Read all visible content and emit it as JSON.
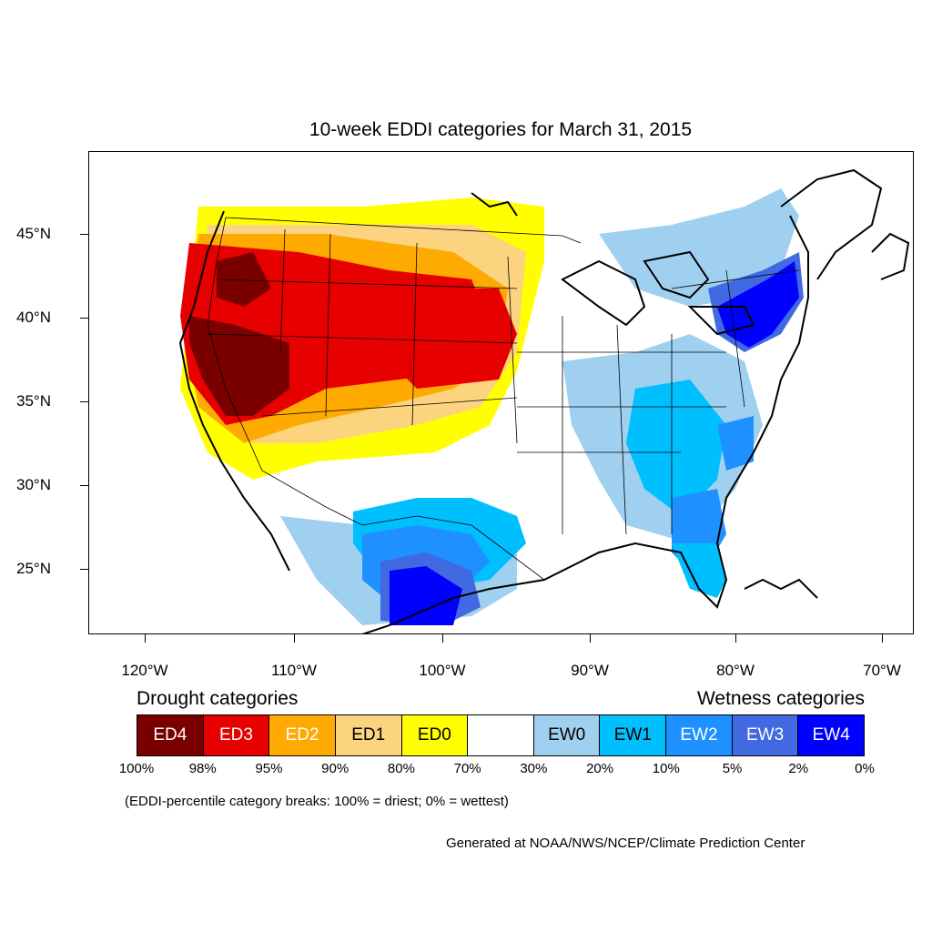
{
  "title": "10-week EDDI categories for March 31, 2015",
  "map": {
    "lat_labels": [
      "45°N",
      "40°N",
      "35°N",
      "30°N",
      "25°N"
    ],
    "lon_labels": [
      "120°W",
      "110°W",
      "100°W",
      "90°W",
      "80°W",
      "70°W"
    ]
  },
  "legend": {
    "drought_heading": "Drought categories",
    "wetness_heading": "Wetness categories",
    "categories": [
      {
        "label": "ED4",
        "color": "#7a0000",
        "text_color": "#ffffff"
      },
      {
        "label": "ED3",
        "color": "#e60000",
        "text_color": "#ffffff"
      },
      {
        "label": "ED2",
        "color": "#ffaa00",
        "text_color": "#ffffff"
      },
      {
        "label": "ED1",
        "color": "#fcd37f",
        "text_color": "#000000"
      },
      {
        "label": "ED0",
        "color": "#ffff00",
        "text_color": "#000000"
      },
      {
        "label": "",
        "color": "#ffffff",
        "text_color": "#000000"
      },
      {
        "label": "EW0",
        "color": "#9fd0f0",
        "text_color": "#000000"
      },
      {
        "label": "EW1",
        "color": "#00bfff",
        "text_color": "#000000"
      },
      {
        "label": "EW2",
        "color": "#1e90ff",
        "text_color": "#ffffff"
      },
      {
        "label": "EW3",
        "color": "#4169e1",
        "text_color": "#ffffff"
      },
      {
        "label": "EW4",
        "color": "#0000ff",
        "text_color": "#ffffff"
      }
    ],
    "breaks": [
      "100%",
      "98%",
      "95%",
      "90%",
      "80%",
      "70%",
      "30%",
      "20%",
      "10%",
      "5%",
      "2%",
      "0%"
    ]
  },
  "note": "(EDDI-percentile category breaks: 100% = driest; 0% = wettest)",
  "credit": "Generated at NOAA/NWS/NCEP/Climate Prediction Center"
}
